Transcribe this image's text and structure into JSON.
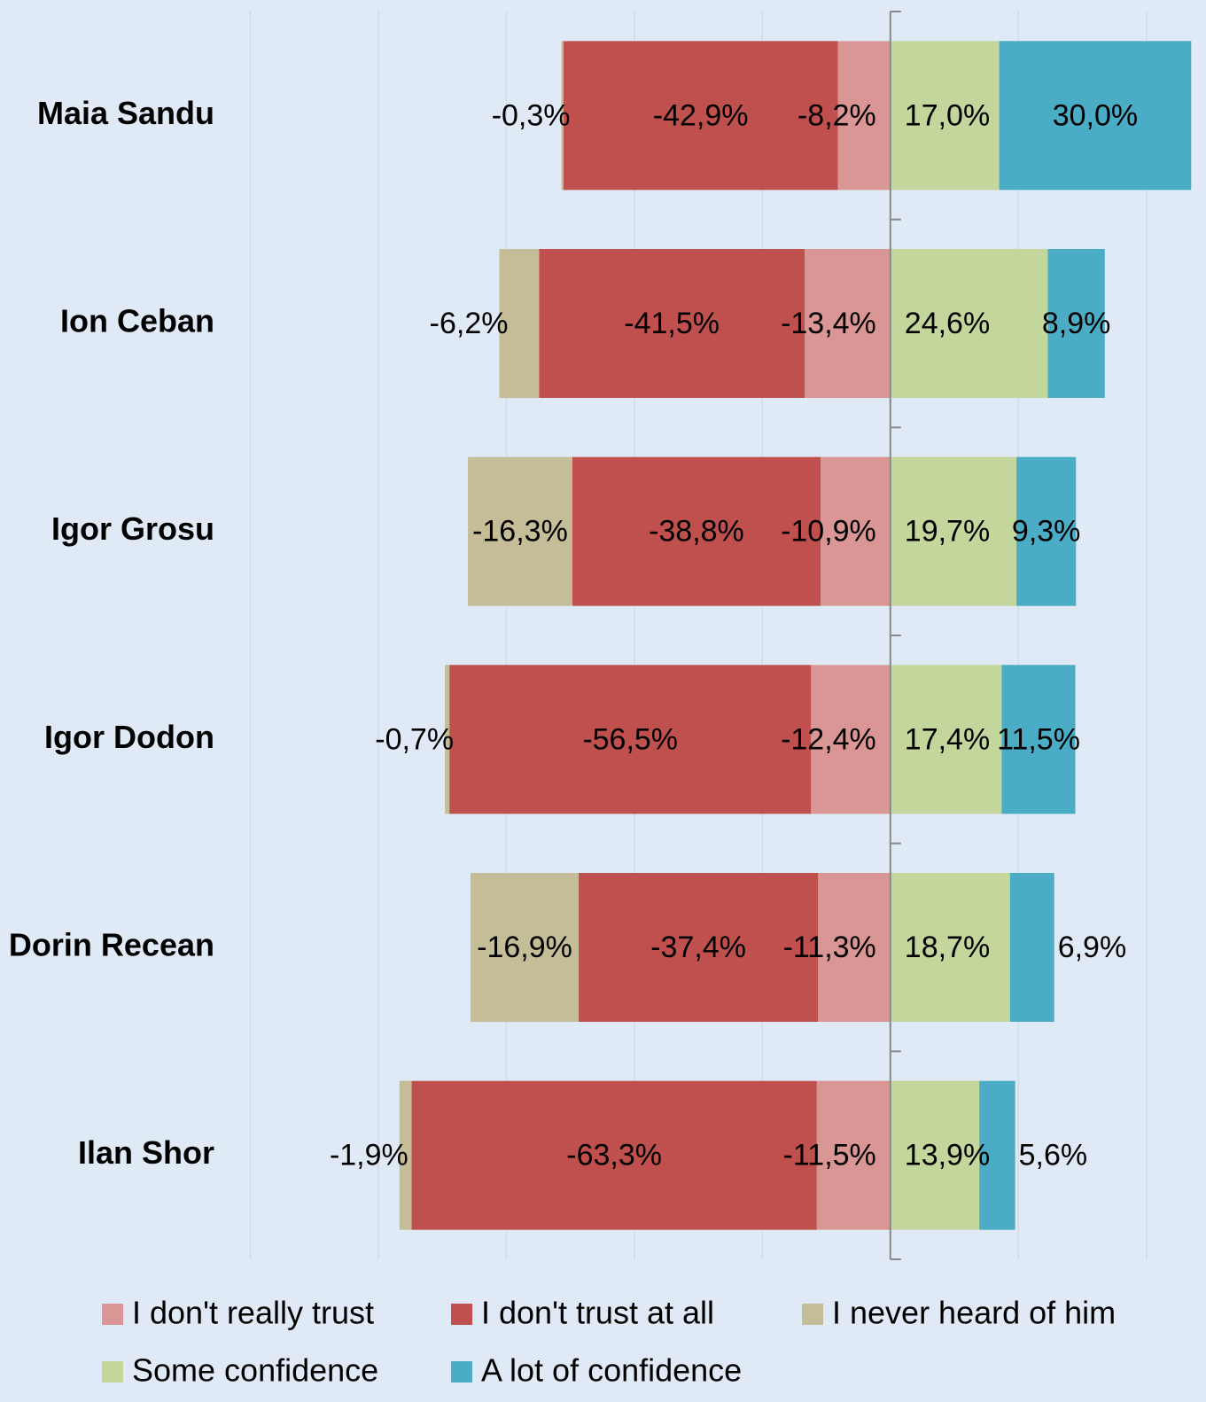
{
  "chart_data": {
    "type": "diverging-bar",
    "categories": [
      "Maia Sandu",
      "Ion Ceban",
      "Igor Grosu",
      "Igor Dodon",
      "Dorin Recean",
      "Ilan Shor"
    ],
    "xlim": [
      -100,
      48
    ],
    "xticks": [
      -100,
      -80,
      -60,
      -40,
      -20,
      0,
      20,
      40
    ],
    "grid": true,
    "legend": "bottom",
    "series": [
      {
        "name": "I don't really trust",
        "color": "#d99694",
        "side": "left",
        "values": [
          -8.2,
          -13.4,
          -10.9,
          -12.4,
          -11.3,
          -11.5
        ],
        "value_labels": [
          "-8,2%",
          "-13,4%",
          "-10,9%",
          "-12,4%",
          "-11,3%",
          "-11,5%"
        ]
      },
      {
        "name": "I don't trust at all",
        "color": "#c0504d",
        "side": "left",
        "values": [
          -42.9,
          -41.5,
          -38.8,
          -56.5,
          -37.4,
          -63.3
        ],
        "value_labels": [
          "-42,9%",
          "-41,5%",
          "-38,8%",
          "-56,5%",
          "-37,4%",
          "-63,3%"
        ]
      },
      {
        "name": "I never heard of him",
        "color": "#c4bd97",
        "side": "left",
        "values": [
          -0.3,
          -6.2,
          -16.3,
          -0.7,
          -16.9,
          -1.9
        ],
        "value_labels": [
          "-0,3%",
          "-6,2%",
          "-16,3%",
          "-0,7%",
          "-16,9%",
          "-1,9%"
        ]
      },
      {
        "name": "Some confidence",
        "color": "#c3d69b",
        "side": "right",
        "values": [
          17.0,
          24.6,
          19.7,
          17.4,
          18.7,
          13.9
        ],
        "value_labels": [
          "17,0%",
          "24,6%",
          "19,7%",
          "17,4%",
          "18,7%",
          "13,9%"
        ]
      },
      {
        "name": "A lot of confidence",
        "color": "#4bacc6",
        "side": "right",
        "values": [
          30.0,
          8.9,
          9.3,
          11.5,
          6.9,
          5.6
        ],
        "value_labels": [
          "30,0%",
          "8,9%",
          "9,3%",
          "11,5%",
          "6,9%",
          "5,6%"
        ]
      }
    ]
  }
}
